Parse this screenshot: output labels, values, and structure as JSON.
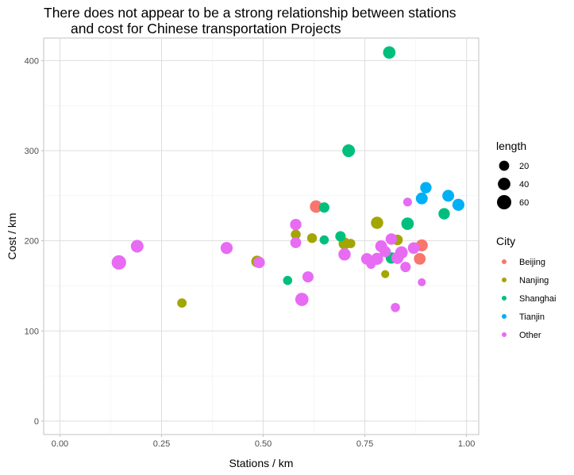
{
  "chart_data": {
    "type": "scatter",
    "title_line1": "There does not appear to be a strong relationship between stations",
    "title_line2": "and cost for Chinese transportation Projects",
    "xlabel": "Stations / km",
    "ylabel": "Cost / km",
    "xlim": [
      -0.04,
      1.03
    ],
    "ylim": [
      -15,
      425
    ],
    "x_ticks": [
      {
        "value": 0.0,
        "label": "0.00"
      },
      {
        "value": 0.25,
        "label": "0.25"
      },
      {
        "value": 0.5,
        "label": "0.50"
      },
      {
        "value": 0.75,
        "label": "0.75"
      },
      {
        "value": 1.0,
        "label": "1.00"
      }
    ],
    "y_ticks": [
      {
        "value": 0,
        "label": "0"
      },
      {
        "value": 100,
        "label": "100"
      },
      {
        "value": 200,
        "label": "200"
      },
      {
        "value": 300,
        "label": "300"
      },
      {
        "value": 400,
        "label": "400"
      }
    ],
    "grid": true,
    "legend_size": {
      "title": "length",
      "entries": [
        {
          "label": "20",
          "value": 20
        },
        {
          "label": "40",
          "value": 40
        },
        {
          "label": "60",
          "value": 60
        }
      ]
    },
    "legend_color": {
      "title": "City",
      "entries": [
        {
          "label": "Beijing",
          "color": "#f8766d"
        },
        {
          "label": "Nanjing",
          "color": "#a3a500"
        },
        {
          "label": "Shanghai",
          "color": "#00bf7d"
        },
        {
          "label": "Tianjin",
          "color": "#00b0f6"
        },
        {
          "label": "Other",
          "color": "#e76bf3"
        }
      ]
    },
    "series": [
      {
        "name": "Beijing",
        "color": "#f8766d",
        "points": [
          {
            "x": 0.63,
            "y": 238,
            "length": 40
          },
          {
            "x": 0.89,
            "y": 195,
            "length": 35
          },
          {
            "x": 0.885,
            "y": 180,
            "length": 33
          }
        ]
      },
      {
        "name": "Nanjing",
        "color": "#a3a500",
        "points": [
          {
            "x": 0.3,
            "y": 131,
            "length": 15
          },
          {
            "x": 0.485,
            "y": 177,
            "length": 33
          },
          {
            "x": 0.58,
            "y": 207,
            "length": 18
          },
          {
            "x": 0.62,
            "y": 203,
            "length": 18
          },
          {
            "x": 0.7,
            "y": 197,
            "length": 35
          },
          {
            "x": 0.715,
            "y": 197,
            "length": 15
          },
          {
            "x": 0.78,
            "y": 220,
            "length": 38
          },
          {
            "x": 0.8,
            "y": 163,
            "length": 8
          },
          {
            "x": 0.83,
            "y": 201,
            "length": 24
          }
        ]
      },
      {
        "name": "Shanghai",
        "color": "#00bf7d",
        "points": [
          {
            "x": 0.56,
            "y": 156,
            "length": 14
          },
          {
            "x": 0.65,
            "y": 237,
            "length": 22
          },
          {
            "x": 0.65,
            "y": 201,
            "length": 14
          },
          {
            "x": 0.69,
            "y": 205,
            "length": 22
          },
          {
            "x": 0.71,
            "y": 300,
            "length": 42
          },
          {
            "x": 0.81,
            "y": 409,
            "length": 40
          },
          {
            "x": 0.815,
            "y": 181,
            "length": 30
          },
          {
            "x": 0.855,
            "y": 219,
            "length": 40
          },
          {
            "x": 0.945,
            "y": 230,
            "length": 30
          }
        ]
      },
      {
        "name": "Tianjin",
        "color": "#00b0f6",
        "points": [
          {
            "x": 0.89,
            "y": 247,
            "length": 34
          },
          {
            "x": 0.9,
            "y": 259,
            "length": 30
          },
          {
            "x": 0.955,
            "y": 250,
            "length": 34
          },
          {
            "x": 0.98,
            "y": 240,
            "length": 36
          }
        ]
      },
      {
        "name": "Other",
        "color": "#e76bf3",
        "points": [
          {
            "x": 0.145,
            "y": 176,
            "length": 62
          },
          {
            "x": 0.19,
            "y": 194,
            "length": 42
          },
          {
            "x": 0.41,
            "y": 192,
            "length": 36
          },
          {
            "x": 0.49,
            "y": 176,
            "length": 30
          },
          {
            "x": 0.58,
            "y": 218,
            "length": 30
          },
          {
            "x": 0.58,
            "y": 198,
            "length": 26
          },
          {
            "x": 0.595,
            "y": 135,
            "length": 48
          },
          {
            "x": 0.61,
            "y": 160,
            "length": 28
          },
          {
            "x": 0.7,
            "y": 185,
            "length": 38
          },
          {
            "x": 0.755,
            "y": 180,
            "length": 32
          },
          {
            "x": 0.765,
            "y": 174,
            "length": 14
          },
          {
            "x": 0.78,
            "y": 180,
            "length": 36
          },
          {
            "x": 0.79,
            "y": 194,
            "length": 34
          },
          {
            "x": 0.8,
            "y": 188,
            "length": 28
          },
          {
            "x": 0.815,
            "y": 202,
            "length": 30
          },
          {
            "x": 0.825,
            "y": 126,
            "length": 14
          },
          {
            "x": 0.83,
            "y": 181,
            "length": 36
          },
          {
            "x": 0.84,
            "y": 187,
            "length": 40
          },
          {
            "x": 0.85,
            "y": 171,
            "length": 22
          },
          {
            "x": 0.855,
            "y": 243,
            "length": 12
          },
          {
            "x": 0.87,
            "y": 192,
            "length": 32
          },
          {
            "x": 0.89,
            "y": 154,
            "length": 8
          }
        ]
      }
    ]
  }
}
